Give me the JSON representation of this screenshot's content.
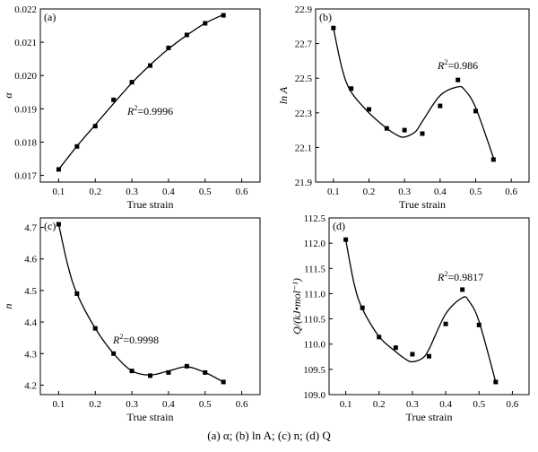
{
  "caption": "(a) α; (b) ln A; (c) n; (d) Q",
  "chart_data": [
    {
      "type": "scatter",
      "panel_label": "(a)",
      "xlabel": "True strain",
      "ylabel": "α",
      "xlim": [
        0.05,
        0.65
      ],
      "ylim": [
        0.0168,
        0.022
      ],
      "xticks": [
        0.1,
        0.2,
        0.3,
        0.4,
        0.5,
        0.6
      ],
      "yticks": [
        0.017,
        0.018,
        0.019,
        0.02,
        0.021,
        0.022
      ],
      "ytick_labels": [
        "0.017",
        "0.018",
        "0.019",
        "0.020",
        "0.021",
        "0.022"
      ],
      "annotation": "R²=0.9996",
      "x": [
        0.1,
        0.15,
        0.2,
        0.25,
        0.3,
        0.35,
        0.4,
        0.45,
        0.5,
        0.55
      ],
      "y": [
        0.01718,
        0.01787,
        0.01848,
        0.01927,
        0.0198,
        0.0203,
        0.02083,
        0.02122,
        0.02157,
        0.02181
      ],
      "fit_x": [
        0.1,
        0.15,
        0.2,
        0.25,
        0.3,
        0.35,
        0.4,
        0.45,
        0.5,
        0.55
      ],
      "fit_y": [
        0.01718,
        0.01788,
        0.01852,
        0.01916,
        0.01978,
        0.02032,
        0.0208,
        0.02121,
        0.02157,
        0.02183
      ]
    },
    {
      "type": "scatter",
      "panel_label": "(b)",
      "xlabel": "True strain",
      "ylabel": "ln A",
      "xlim": [
        0.05,
        0.65
      ],
      "ylim": [
        21.9,
        22.9
      ],
      "xticks": [
        0.1,
        0.2,
        0.3,
        0.4,
        0.5,
        0.6
      ],
      "yticks": [
        21.9,
        22.1,
        22.3,
        22.5,
        22.7,
        22.9
      ],
      "ytick_labels": [
        "21.9",
        "22.1",
        "22.3",
        "22.5",
        "22.7",
        "22.9"
      ],
      "annotation": "R²=0.986",
      "x": [
        0.1,
        0.15,
        0.2,
        0.25,
        0.3,
        0.35,
        0.4,
        0.45,
        0.5,
        0.55
      ],
      "y": [
        22.79,
        22.44,
        22.32,
        22.21,
        22.2,
        22.18,
        22.34,
        22.49,
        22.31,
        22.03
      ],
      "fit_x": [
        0.1,
        0.125,
        0.15,
        0.2,
        0.25,
        0.28,
        0.3,
        0.33,
        0.35,
        0.4,
        0.45,
        0.47,
        0.5,
        0.55
      ],
      "fit_y": [
        22.79,
        22.55,
        22.42,
        22.3,
        22.21,
        22.17,
        22.16,
        22.19,
        22.25,
        22.4,
        22.45,
        22.43,
        22.33,
        22.04
      ]
    },
    {
      "type": "scatter",
      "panel_label": "(c)",
      "xlabel": "True strain",
      "ylabel": "n",
      "xlim": [
        0.05,
        0.65
      ],
      "ylim": [
        4.17,
        4.73
      ],
      "xticks": [
        0.1,
        0.2,
        0.3,
        0.4,
        0.5,
        0.6
      ],
      "yticks": [
        4.2,
        4.3,
        4.4,
        4.5,
        4.6,
        4.7
      ],
      "ytick_labels": [
        "4.2",
        "4.3",
        "4.4",
        "4.5",
        "4.6",
        "4.7"
      ],
      "annotation": "R²=0.9998",
      "x": [
        0.1,
        0.15,
        0.2,
        0.25,
        0.3,
        0.35,
        0.4,
        0.45,
        0.5,
        0.55
      ],
      "y": [
        4.71,
        4.49,
        4.38,
        4.3,
        4.245,
        4.23,
        4.24,
        4.26,
        4.24,
        4.21
      ],
      "fit_x": [
        0.1,
        0.125,
        0.15,
        0.2,
        0.25,
        0.3,
        0.35,
        0.4,
        0.45,
        0.5,
        0.55
      ],
      "fit_y": [
        4.71,
        4.58,
        4.49,
        4.38,
        4.3,
        4.245,
        4.232,
        4.245,
        4.258,
        4.24,
        4.21
      ]
    },
    {
      "type": "scatter",
      "panel_label": "(d)",
      "xlabel": "True strain",
      "ylabel": "Q/(kJ•mol⁻¹)",
      "xlim": [
        0.05,
        0.65
      ],
      "ylim": [
        109.0,
        112.5
      ],
      "xticks": [
        0.1,
        0.2,
        0.3,
        0.4,
        0.5,
        0.6
      ],
      "yticks": [
        109.0,
        109.5,
        110.0,
        110.5,
        111.0,
        111.5,
        112.0,
        112.5
      ],
      "ytick_labels": [
        "109.0",
        "109.5",
        "110.0",
        "110.5",
        "111.0",
        "111.5",
        "112.0",
        "112.5"
      ],
      "annotation": "R²=0.9817",
      "x": [
        0.1,
        0.15,
        0.2,
        0.25,
        0.3,
        0.35,
        0.4,
        0.45,
        0.5,
        0.55
      ],
      "y": [
        112.07,
        110.72,
        110.14,
        109.93,
        109.8,
        109.76,
        110.4,
        111.08,
        110.38,
        109.25
      ],
      "fit_x": [
        0.1,
        0.125,
        0.15,
        0.2,
        0.25,
        0.28,
        0.3,
        0.33,
        0.35,
        0.4,
        0.45,
        0.47,
        0.5,
        0.55
      ],
      "fit_y": [
        112.07,
        111.2,
        110.7,
        110.15,
        109.85,
        109.7,
        109.65,
        109.72,
        109.9,
        110.6,
        110.92,
        110.85,
        110.45,
        109.25
      ]
    }
  ]
}
